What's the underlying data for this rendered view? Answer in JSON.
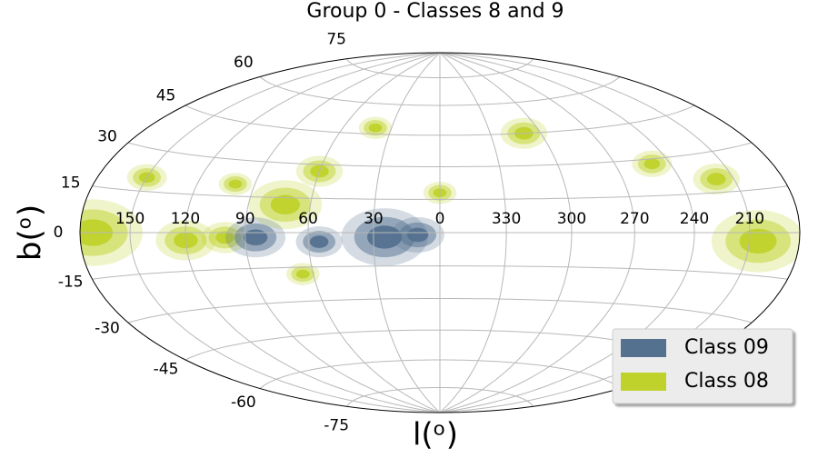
{
  "chart_data": {
    "type": "skymap",
    "title": "Group 0 - Classes 8 and 9",
    "xlabel": "l(ᵒ)",
    "ylabel": "b(ᵒ)",
    "xticks": [
      150,
      120,
      90,
      60,
      30,
      0,
      330,
      300,
      270,
      240,
      210
    ],
    "yticks": [
      75,
      60,
      45,
      30,
      15,
      0,
      -15,
      -30,
      -45,
      -60,
      -75
    ],
    "grid": true,
    "legend": "lower right",
    "series": [
      {
        "name": "Class 09",
        "color": "#54718f",
        "l": [
          25,
          55,
          10,
          85
        ],
        "b": [
          -2,
          -4,
          -1,
          -2
        ],
        "size": [
          13,
          7,
          8,
          9
        ]
      },
      {
        "name": "Class 08",
        "color": "#bfd22b",
        "l": [
          72,
          172,
          205,
          120,
          100,
          65,
          60,
          100,
          150,
          0,
          220,
          250,
          310,
          40
        ],
        "b": [
          12,
          0,
          -3,
          -3,
          -2,
          -18,
          27,
          20,
          20,
          18,
          20,
          28,
          45,
          48
        ],
        "size": [
          11,
          15,
          14,
          9,
          7,
          5,
          7,
          5,
          6,
          5,
          7,
          6,
          7,
          5
        ]
      }
    ]
  }
}
